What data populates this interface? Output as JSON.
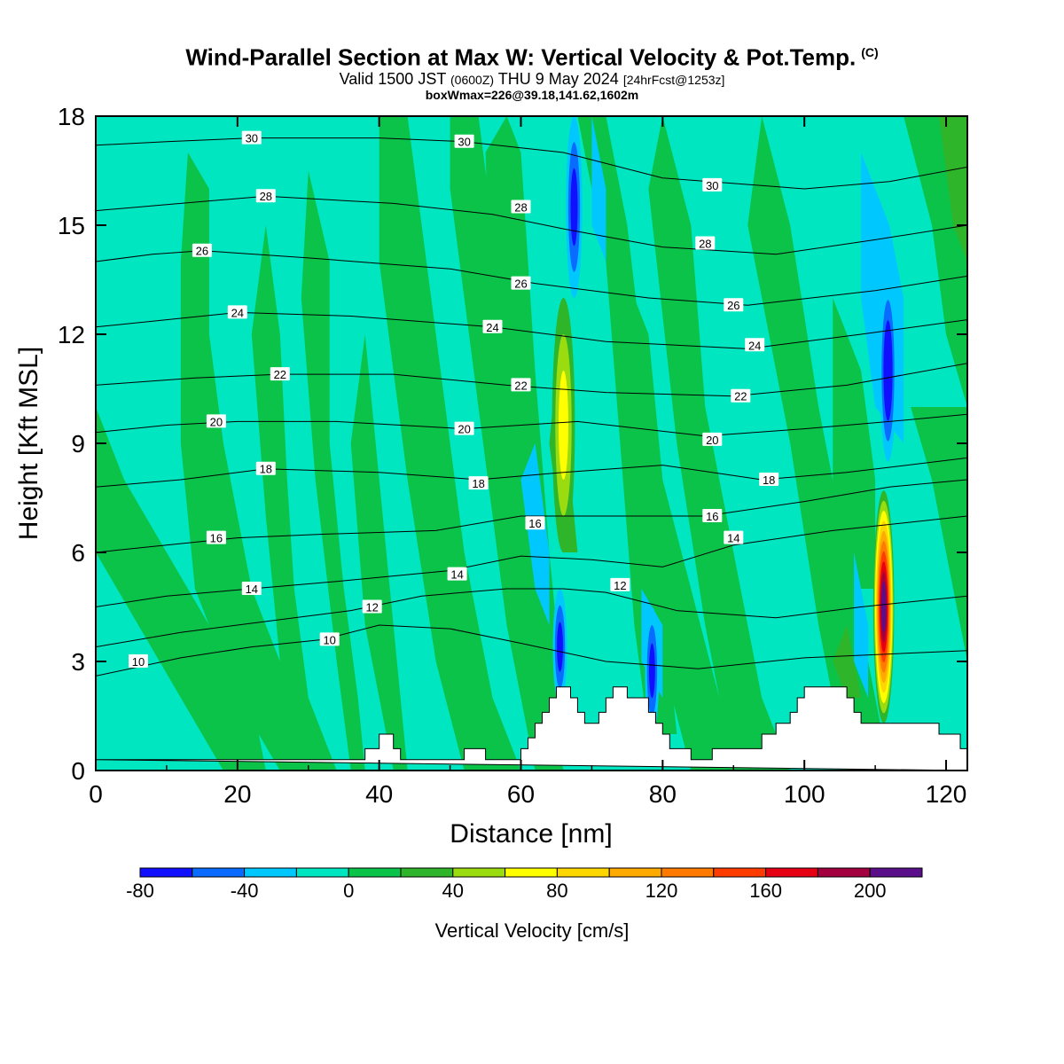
{
  "title": {
    "main": "Wind-Parallel Section at Max W: Vertical Velocity & Pot.Temp.",
    "copyright": "(C)",
    "valid_main": "Valid 1500 JST",
    "valid_utc": "(0600Z)",
    "valid_date": "THU 9 May 2024",
    "valid_fcst": "[24hrFcst@1253z]",
    "box_info": "boxWmax=226@39.18,141.62,1602m"
  },
  "chart_data": {
    "type": "heatmap",
    "xlabel": "Distance [nm]",
    "ylabel": "Height [Kft MSL]",
    "xlim": [
      0,
      123
    ],
    "ylim": [
      0,
      18
    ],
    "xticks": [
      "0",
      "20",
      "40",
      "60",
      "80",
      "100",
      "120"
    ],
    "yticks": [
      "0",
      "3",
      "6",
      "9",
      "12",
      "15",
      "18"
    ],
    "colorbar": {
      "label": "Vertical Velocity [cm/s]",
      "levels": [
        -80,
        -60,
        -40,
        -20,
        0,
        20,
        40,
        60,
        80,
        100,
        120,
        140,
        160,
        180,
        200,
        220
      ],
      "tick_labels": [
        "-80",
        "-40",
        "0",
        "40",
        "80",
        "120",
        "160",
        "200"
      ],
      "colors": [
        "#1010ff",
        "#0a6cff",
        "#00c8ff",
        "#00e6c0",
        "#0cc34a",
        "#2fb52a",
        "#9bdc10",
        "#ffff00",
        "#ffd700",
        "#ffaa00",
        "#ff7a00",
        "#ff3c00",
        "#e60014",
        "#a30040",
        "#5a0e8a"
      ]
    },
    "updrafts": [
      {
        "x_center": 111.2,
        "y_bottom": 1.3,
        "y_top": 7.7,
        "peak": 226
      },
      {
        "x_center": 66.0,
        "y_bottom": 6.0,
        "y_top": 13.0,
        "peak": 70
      }
    ],
    "downdrafts": [
      {
        "x_center": 67.5,
        "y_bottom": 13.0,
        "y_top": 18.0,
        "value": -70
      },
      {
        "x_center": 65.5,
        "y_bottom": 1.8,
        "y_top": 5.0,
        "value": -70
      },
      {
        "x_center": 78.5,
        "y_bottom": 1.0,
        "y_top": 4.5,
        "value": -65
      },
      {
        "x_center": 111.8,
        "y_bottom": 8.5,
        "y_top": 13.5,
        "value": -80
      }
    ],
    "terrain": [
      [
        0,
        0.3
      ],
      [
        38,
        0.3
      ],
      [
        38,
        0.6
      ],
      [
        40,
        0.6
      ],
      [
        40,
        1.0
      ],
      [
        42,
        1.0
      ],
      [
        42,
        0.6
      ],
      [
        43,
        0.6
      ],
      [
        43,
        0.3
      ],
      [
        52,
        0.3
      ],
      [
        52,
        0.6
      ],
      [
        55,
        0.6
      ],
      [
        55,
        0.3
      ],
      [
        60,
        0.3
      ],
      [
        60,
        0.6
      ],
      [
        61,
        0.6
      ],
      [
        61,
        0.9
      ],
      [
        62,
        0.9
      ],
      [
        62,
        1.3
      ],
      [
        63,
        1.3
      ],
      [
        63,
        1.6
      ],
      [
        64,
        1.6
      ],
      [
        64,
        2.0
      ],
      [
        65,
        2.0
      ],
      [
        65,
        2.3
      ],
      [
        67,
        2.3
      ],
      [
        67,
        2.0
      ],
      [
        68,
        2.0
      ],
      [
        68,
        1.6
      ],
      [
        69,
        1.6
      ],
      [
        69,
        1.3
      ],
      [
        71,
        1.3
      ],
      [
        71,
        1.6
      ],
      [
        72,
        1.6
      ],
      [
        72,
        2.0
      ],
      [
        73,
        2.0
      ],
      [
        73,
        2.3
      ],
      [
        75,
        2.3
      ],
      [
        75,
        2.0
      ],
      [
        78,
        2.0
      ],
      [
        78,
        1.6
      ],
      [
        79,
        1.6
      ],
      [
        79,
        1.3
      ],
      [
        80,
        1.3
      ],
      [
        80,
        1.0
      ],
      [
        81,
        1.0
      ],
      [
        81,
        0.6
      ],
      [
        84,
        0.6
      ],
      [
        84,
        0.3
      ],
      [
        87,
        0.3
      ],
      [
        87,
        0.6
      ],
      [
        94,
        0.6
      ],
      [
        94,
        1.0
      ],
      [
        96,
        1.0
      ],
      [
        96,
        1.3
      ],
      [
        98,
        1.3
      ],
      [
        98,
        1.6
      ],
      [
        99,
        1.6
      ],
      [
        99,
        2.0
      ],
      [
        100,
        2.0
      ],
      [
        100,
        2.3
      ],
      [
        106,
        2.3
      ],
      [
        106,
        2.0
      ],
      [
        107,
        2.0
      ],
      [
        107,
        1.6
      ],
      [
        108,
        1.6
      ],
      [
        108,
        1.3
      ],
      [
        119,
        1.3
      ],
      [
        119,
        1.0
      ],
      [
        122,
        1.0
      ],
      [
        122,
        0.6
      ],
      [
        123,
        0.6
      ],
      [
        123,
        0
      ]
    ],
    "theta_contours": [
      {
        "label": "10",
        "label_x": 6,
        "label_y": 3.0,
        "pts": [
          [
            0,
            2.6
          ],
          [
            12,
            3.1
          ],
          [
            22,
            3.4
          ],
          [
            32,
            3.6
          ],
          [
            40,
            4.0
          ],
          [
            50,
            3.9
          ],
          [
            60,
            3.5
          ],
          [
            72,
            3.0
          ],
          [
            85,
            2.8
          ],
          [
            100,
            3.1
          ],
          [
            123,
            3.3
          ]
        ]
      },
      {
        "label": "12",
        "label_x": 39,
        "label_y": 4.5,
        "pts": [
          [
            0,
            3.4
          ],
          [
            12,
            3.8
          ],
          [
            24,
            4.1
          ],
          [
            36,
            4.4
          ],
          [
            46,
            4.8
          ],
          [
            58,
            5.0
          ],
          [
            66,
            5.0
          ],
          [
            72,
            4.9
          ],
          [
            82,
            4.4
          ],
          [
            96,
            4.2
          ],
          [
            108,
            4.5
          ],
          [
            123,
            4.8
          ]
        ]
      },
      {
        "label": "14",
        "label_x": 22,
        "label_y": 5.0,
        "pts": [
          [
            0,
            4.5
          ],
          [
            10,
            4.8
          ],
          [
            22,
            5.0
          ],
          [
            34,
            5.2
          ],
          [
            50,
            5.5
          ],
          [
            60,
            5.9
          ],
          [
            70,
            5.8
          ],
          [
            80,
            5.6
          ],
          [
            90,
            6.2
          ],
          [
            104,
            6.6
          ],
          [
            123,
            7.0
          ]
        ]
      },
      {
        "label": "16",
        "label_x": 17,
        "label_y": 6.4,
        "pts": [
          [
            0,
            6.0
          ],
          [
            10,
            6.2
          ],
          [
            20,
            6.4
          ],
          [
            32,
            6.5
          ],
          [
            48,
            6.6
          ],
          [
            60,
            7.0
          ],
          [
            72,
            7.0
          ],
          [
            86,
            7.0
          ],
          [
            100,
            7.4
          ],
          [
            112,
            7.8
          ],
          [
            123,
            8.0
          ]
        ]
      },
      {
        "label": "18",
        "label_x": 24,
        "label_y": 8.3,
        "pts": [
          [
            0,
            7.8
          ],
          [
            12,
            8.0
          ],
          [
            24,
            8.3
          ],
          [
            40,
            8.2
          ],
          [
            54,
            8.0
          ],
          [
            66,
            8.2
          ],
          [
            80,
            8.4
          ],
          [
            94,
            8.0
          ],
          [
            106,
            8.2
          ],
          [
            123,
            8.6
          ]
        ]
      },
      {
        "label": "20",
        "label_x": 17,
        "label_y": 9.6,
        "pts": [
          [
            0,
            9.3
          ],
          [
            10,
            9.5
          ],
          [
            20,
            9.6
          ],
          [
            34,
            9.6
          ],
          [
            52,
            9.4
          ],
          [
            68,
            9.6
          ],
          [
            86,
            9.2
          ],
          [
            100,
            9.4
          ],
          [
            112,
            9.6
          ],
          [
            123,
            9.8
          ]
        ]
      },
      {
        "label": "22",
        "label_x": 26,
        "label_y": 10.9,
        "pts": [
          [
            0,
            10.6
          ],
          [
            14,
            10.8
          ],
          [
            26,
            10.9
          ],
          [
            42,
            10.9
          ],
          [
            58,
            10.6
          ],
          [
            72,
            10.4
          ],
          [
            90,
            10.3
          ],
          [
            106,
            10.6
          ],
          [
            123,
            11.2
          ]
        ]
      },
      {
        "label": "24",
        "label_x": 20,
        "label_y": 12.6,
        "pts": [
          [
            0,
            12.2
          ],
          [
            10,
            12.4
          ],
          [
            20,
            12.6
          ],
          [
            36,
            12.5
          ],
          [
            56,
            12.2
          ],
          [
            72,
            11.8
          ],
          [
            92,
            11.6
          ],
          [
            108,
            12.0
          ],
          [
            123,
            12.4
          ]
        ]
      },
      {
        "label": "26",
        "label_x": 15,
        "label_y": 14.3,
        "pts": [
          [
            0,
            14.0
          ],
          [
            8,
            14.2
          ],
          [
            15,
            14.3
          ],
          [
            30,
            14.1
          ],
          [
            50,
            13.8
          ],
          [
            62,
            13.4
          ],
          [
            78,
            13.0
          ],
          [
            92,
            12.8
          ],
          [
            110,
            13.2
          ],
          [
            123,
            13.6
          ]
        ]
      },
      {
        "label": "28",
        "label_x": 24,
        "label_y": 15.8,
        "pts": [
          [
            0,
            15.4
          ],
          [
            12,
            15.6
          ],
          [
            24,
            15.8
          ],
          [
            42,
            15.6
          ],
          [
            56,
            15.3
          ],
          [
            66,
            14.9
          ],
          [
            80,
            14.4
          ],
          [
            96,
            14.2
          ],
          [
            110,
            14.6
          ],
          [
            123,
            15.0
          ]
        ]
      },
      {
        "label": "30",
        "label_x": 22,
        "label_y": 17.4,
        "pts": [
          [
            0,
            17.2
          ],
          [
            10,
            17.3
          ],
          [
            22,
            17.4
          ],
          [
            40,
            17.4
          ],
          [
            52,
            17.3
          ],
          [
            66,
            17.0
          ],
          [
            80,
            16.3
          ],
          [
            100,
            16.0
          ],
          [
            112,
            16.2
          ],
          [
            123,
            16.6
          ]
        ]
      }
    ],
    "theta_labels_extra": [
      {
        "label": "30",
        "x": 52,
        "y": 17.3
      },
      {
        "label": "30",
        "x": 87,
        "y": 16.1
      },
      {
        "label": "28",
        "x": 60,
        "y": 15.5
      },
      {
        "label": "28",
        "x": 86,
        "y": 14.5
      },
      {
        "label": "26",
        "x": 60,
        "y": 13.4
      },
      {
        "label": "26",
        "x": 90,
        "y": 12.8
      },
      {
        "label": "24",
        "x": 56,
        "y": 12.2
      },
      {
        "label": "24",
        "x": 93,
        "y": 11.7
      },
      {
        "label": "22",
        "x": 60,
        "y": 10.6
      },
      {
        "label": "22",
        "x": 91,
        "y": 10.3
      },
      {
        "label": "20",
        "x": 52,
        "y": 9.4
      },
      {
        "label": "20",
        "x": 87,
        "y": 9.1
      },
      {
        "label": "18",
        "x": 54,
        "y": 7.9
      },
      {
        "label": "18",
        "x": 95,
        "y": 8.0
      },
      {
        "label": "16",
        "x": 62,
        "y": 6.8
      },
      {
        "label": "16",
        "x": 87,
        "y": 7.0
      },
      {
        "label": "14",
        "x": 51,
        "y": 5.4
      },
      {
        "label": "14",
        "x": 90,
        "y": 6.4
      },
      {
        "label": "12",
        "x": 74,
        "y": 5.1
      },
      {
        "label": "10",
        "x": 33,
        "y": 3.6
      }
    ]
  }
}
